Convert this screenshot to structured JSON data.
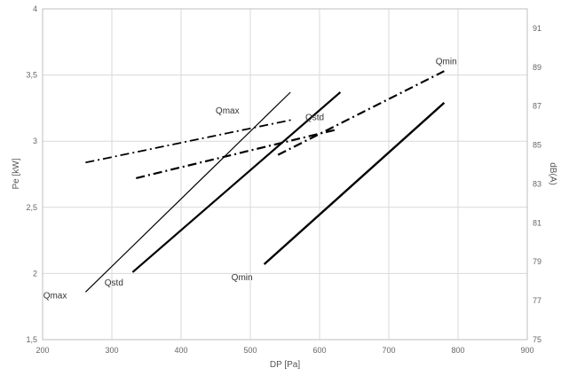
{
  "chart_data": {
    "type": "line",
    "title": "",
    "xlabel": "DP [Pa]",
    "ylabel": "Pe [kW]",
    "y2label": "dB(A)",
    "xlim": [
      200,
      900
    ],
    "ylim": [
      1.5,
      4
    ],
    "y2lim": [
      75,
      92
    ],
    "grid": true,
    "legend": "none",
    "x_ticks": [
      200,
      300,
      400,
      500,
      600,
      700,
      800,
      900
    ],
    "y_ticks": [
      1.5,
      2,
      2.5,
      3,
      3.5,
      4
    ],
    "y_tick_labels": [
      "1,5",
      "2",
      "2,5",
      "3",
      "3,5",
      "4"
    ],
    "y2_ticks": [
      75,
      77,
      79,
      81,
      83,
      85,
      87,
      89,
      91
    ],
    "series": [
      {
        "axis": "left",
        "style": "thin",
        "x": [
          262,
          558
        ],
        "y": [
          1.86,
          3.37
        ]
      },
      {
        "axis": "left",
        "style": "medium",
        "x": [
          330,
          630
        ],
        "y": [
          2.01,
          3.37
        ]
      },
      {
        "axis": "left",
        "style": "thick",
        "x": [
          520,
          780
        ],
        "y": [
          2.07,
          3.29
        ]
      },
      {
        "axis": "right",
        "style": "dashdot-thin",
        "x": [
          262,
          560
        ],
        "y": [
          84.1,
          86.3
        ]
      },
      {
        "axis": "right",
        "style": "dashdot-medium",
        "x": [
          335,
          625
        ],
        "y": [
          83.3,
          85.8
        ]
      },
      {
        "axis": "right",
        "style": "dashdot-thick",
        "x": [
          540,
          780
        ],
        "y": [
          84.5,
          88.8
        ]
      }
    ],
    "annotations": [
      {
        "text": "Qmax",
        "x": 218,
        "y": 1.81,
        "axis": "left"
      },
      {
        "text": "Qstd",
        "x": 303,
        "y": 1.91,
        "axis": "left"
      },
      {
        "text": "Qmin",
        "x": 488,
        "y": 1.95,
        "axis": "left"
      },
      {
        "text": "Qmax",
        "x": 467,
        "y": 3.21,
        "axis": "left"
      },
      {
        "text": "Qstd",
        "x": 593,
        "y": 3.16,
        "axis": "left"
      },
      {
        "text": "Qmin",
        "x": 783,
        "y": 3.58,
        "axis": "left"
      }
    ]
  }
}
